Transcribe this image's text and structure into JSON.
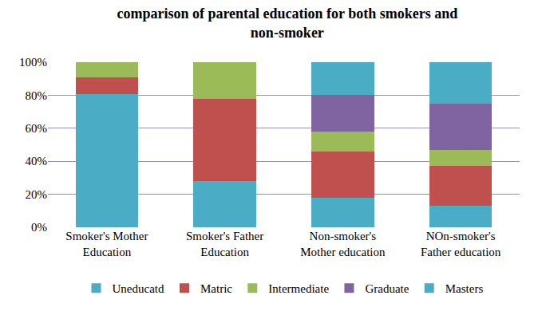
{
  "chart_data": {
    "type": "bar",
    "stacked": true,
    "title": "comparison of parental education for both smokers and\nnon-smoker",
    "categories": [
      "Smoker's Mother\nEducation",
      "Smoker's Father\nEducation",
      "Non-smoker's\nMother education",
      "NOn-smoker's\nFather education"
    ],
    "series": [
      {
        "name": "Uneducatd",
        "color": "#4BACC6",
        "values": [
          80.5,
          28,
          18,
          13
        ]
      },
      {
        "name": "Matric",
        "color": "#C0504D",
        "values": [
          10.5,
          50,
          28,
          24
        ]
      },
      {
        "name": "Intermediate",
        "color": "#9BBB59",
        "values": [
          9,
          22,
          12,
          10
        ]
      },
      {
        "name": "Graduate",
        "color": "#8064A2",
        "values": [
          0,
          0,
          22,
          28
        ]
      },
      {
        "name": "Masters",
        "color": "#4BACC6",
        "values": [
          0,
          0,
          20,
          25
        ]
      }
    ],
    "ylim": [
      0,
      100
    ],
    "yticks": [
      {
        "value": 0,
        "label": "0%"
      },
      {
        "value": 20,
        "label": "20%"
      },
      {
        "value": 40,
        "label": "40%"
      },
      {
        "value": 60,
        "label": "60%"
      },
      {
        "value": 80,
        "label": "80%"
      },
      {
        "value": 100,
        "label": "100%"
      }
    ],
    "grid": true,
    "legend": "bottom"
  }
}
